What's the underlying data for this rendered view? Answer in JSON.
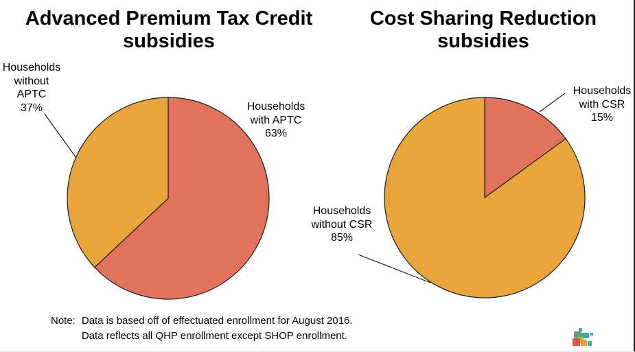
{
  "chart_data": [
    {
      "type": "pie",
      "title": "Advanced Premium Tax Credit subsidies",
      "slices": [
        {
          "label": "Households with APTC",
          "value": 63,
          "pct_label": "63%",
          "color": "#E1735C"
        },
        {
          "label": "Households without APTC",
          "value": 37,
          "pct_label": "37%",
          "color": "#E8A53C"
        }
      ],
      "start_angle_deg": 0,
      "direction": "clockwise",
      "outline_color": "#1a1a1a",
      "label_position": "outside-with-leader-lines",
      "legend": "none"
    },
    {
      "type": "pie",
      "title": "Cost Sharing Reduction subsidies",
      "slices": [
        {
          "label": "Households with CSR",
          "value": 15,
          "pct_label": "15%",
          "color": "#E1735C"
        },
        {
          "label": "Households without CSR",
          "value": 85,
          "pct_label": "85%",
          "color": "#E8A53C"
        }
      ],
      "start_angle_deg": 0,
      "direction": "clockwise",
      "outline_color": "#1a1a1a",
      "label_position": "outside-with-leader-lines",
      "legend": "none"
    }
  ],
  "note": {
    "label": "Note:",
    "line1": "Data is based off of effectuated enrollment for August 2016.",
    "line2": "Data reflects all QHP enrollment except SHOP enrollment."
  },
  "logo": {
    "name": "colored-squares-logo",
    "colors": [
      "#3BA8A8",
      "#69A075",
      "#2FA6B4",
      "#BCC23F",
      "#D85045",
      "#E89A30"
    ]
  }
}
